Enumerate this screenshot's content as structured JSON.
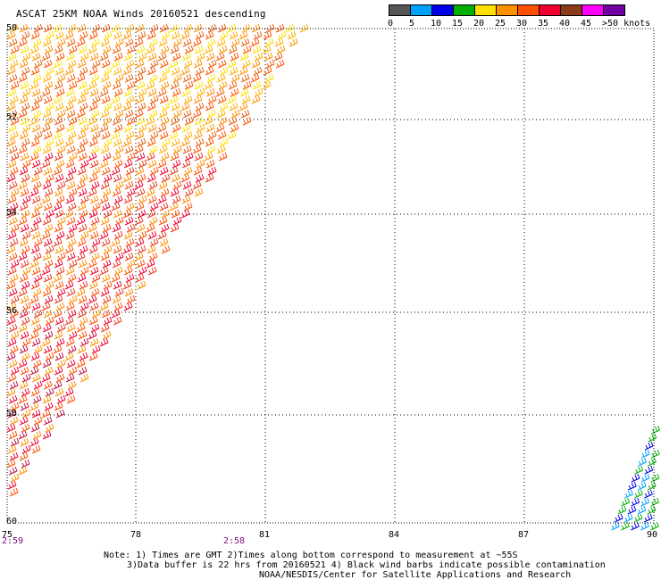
{
  "title": "ASCAT 25KM NOAA Winds 20160521 descending",
  "color_scale": {
    "swatches": [
      "#555555",
      "#00a0ff",
      "#0000e8",
      "#00b000",
      "#ffe000",
      "#ff9000",
      "#ff5000",
      "#f00030",
      "#8b3a1a",
      "#ff00ff",
      "#7000a0"
    ],
    "labels": [
      "0",
      "5",
      "10",
      "15",
      "20",
      "25",
      "30",
      "35",
      "40",
      "45",
      ">50 knots"
    ]
  },
  "axes": {
    "lat_ticks": [
      "50",
      "52",
      "54",
      "56",
      "58",
      "60"
    ],
    "lon_ticks": [
      "75",
      "78",
      "81",
      "84",
      "87",
      "90"
    ]
  },
  "times": {
    "left": "2:59",
    "mid": "2:58"
  },
  "notes": {
    "line1": "Note: 1) Times are GMT 2)Times along bottom correspond to measurement at ~55S",
    "line2": "3)Data buffer is 22 hrs from 20160521 4) Black wind barbs indicate possible contamination",
    "line3": "NOAA/NESDIS/Center for Satellite Applications and Research"
  },
  "barb_colors": {
    "north": [
      "#ff9000",
      "#e86010",
      "#ff5000",
      "#ffe000",
      "#ffb000"
    ],
    "mid": [
      "#ff5000",
      "#f00030",
      "#e83a20",
      "#ff9000"
    ],
    "south": [
      "#f00030",
      "#ff5000",
      "#c01040",
      "#ff9000"
    ],
    "east": [
      "#00b000",
      "#0000e8",
      "#00a0ff"
    ]
  }
}
